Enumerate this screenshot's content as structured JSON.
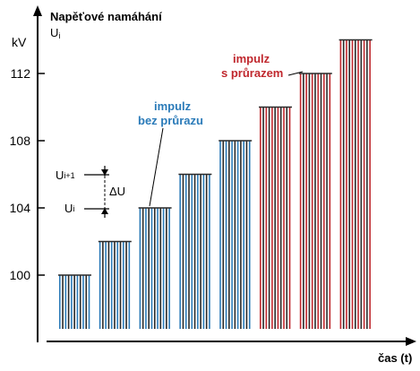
{
  "y_axis": {
    "title": "Napěťové namáhání",
    "symbol_base": "U",
    "symbol_sub": "i",
    "unit": "kV",
    "ticks": [
      100,
      104,
      108,
      112
    ]
  },
  "x_axis": {
    "label": "čas (t)"
  },
  "levels": [
    100,
    102,
    104,
    106,
    108,
    110,
    112,
    114
  ],
  "breakdown_from_index": 5,
  "annotations": {
    "no_breakdown_line1": "impulz",
    "no_breakdown_line2": "bez průrazu",
    "breakdown_line1": "impulz",
    "breakdown_line2": "s průrazem",
    "ui1_base": "U",
    "ui1_sub": "i+1",
    "ui_base": "U",
    "ui_sub": "i",
    "delta": "ΔU"
  },
  "colors": {
    "blue": "#2b7bb9",
    "red": "#c0282e",
    "dark": "#2a2a2a"
  }
}
